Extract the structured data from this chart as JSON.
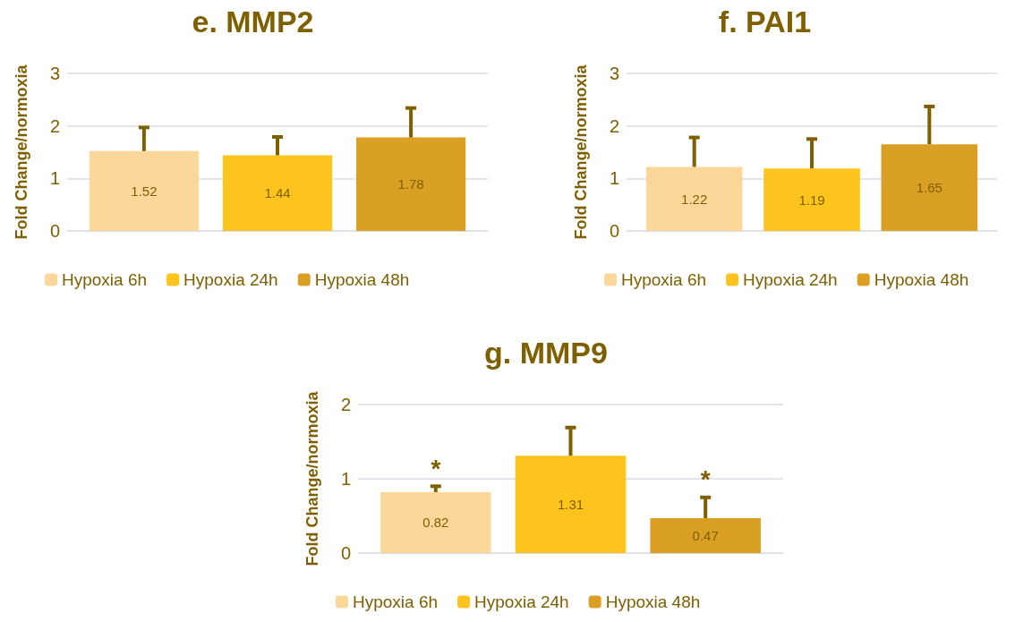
{
  "chart_data": [
    {
      "type": "bar",
      "title": "e. MMP2",
      "ylabel": "Fold Change/normoxia",
      "categories": [
        null
      ],
      "ylim": [
        0,
        3
      ],
      "yticks": [
        0,
        1,
        2,
        3
      ],
      "grid": "y",
      "legend": "bottom",
      "data_labels": true,
      "tick_labels": "y",
      "series": [
        {
          "name": "Hypoxia 6h",
          "color": "#fbd89a",
          "values": [
            1.52
          ],
          "errors": [
            [
              1.52,
              1.97
            ]
          ]
        },
        {
          "name": "Hypoxia 24h",
          "color": "#fcc41c",
          "values": [
            1.44
          ],
          "errors": [
            [
              1.44,
              1.79
            ]
          ]
        },
        {
          "name": "Hypoxia 48h",
          "color": "#d9a024",
          "values": [
            1.78
          ],
          "errors": [
            [
              1.78,
              2.34
            ]
          ]
        }
      ]
    },
    {
      "type": "bar",
      "title": "f. PAI1",
      "ylabel": "Fold Change/normoxia",
      "categories": [
        null
      ],
      "ylim": [
        0,
        3
      ],
      "yticks": [
        0,
        1,
        2,
        3
      ],
      "grid": "y",
      "legend": "bottom",
      "data_labels": true,
      "tick_labels": "y",
      "series": [
        {
          "name": "Hypoxia 6h",
          "color": "#fbd89a",
          "values": [
            1.22
          ],
          "errors": [
            [
              1.22,
              1.78
            ]
          ]
        },
        {
          "name": "Hypoxia 24h",
          "color": "#fcc41c",
          "values": [
            1.19
          ],
          "errors": [
            [
              1.19,
              1.75
            ]
          ]
        },
        {
          "name": "Hypoxia 48h",
          "color": "#d9a024",
          "values": [
            1.65
          ],
          "errors": [
            [
              1.65,
              2.37
            ]
          ]
        }
      ]
    },
    {
      "type": "bar",
      "title": "g. MMP9",
      "ylabel": "Fold Change/normoxia",
      "categories": [
        null
      ],
      "ylim": [
        0,
        2
      ],
      "yticks": [
        0,
        1,
        2
      ],
      "grid": "y",
      "legend": "bottom",
      "data_labels": true,
      "tick_labels": "y",
      "annotations": [
        "*",
        "*"
      ],
      "series": [
        {
          "name": "Hypoxia 6h",
          "color": "#fbd89a",
          "values": [
            0.82
          ],
          "errors": [
            [
              0.82,
              0.9
            ]
          ]
        },
        {
          "name": "Hypoxia 24h",
          "color": "#fcc41c",
          "values": [
            1.31
          ],
          "errors": [
            [
              1.31,
              1.69
            ]
          ]
        },
        {
          "name": "Hypoxia 48h",
          "color": "#d9a024",
          "values": [
            0.47
          ],
          "errors": [
            [
              0.47,
              0.75
            ]
          ]
        }
      ]
    }
  ]
}
